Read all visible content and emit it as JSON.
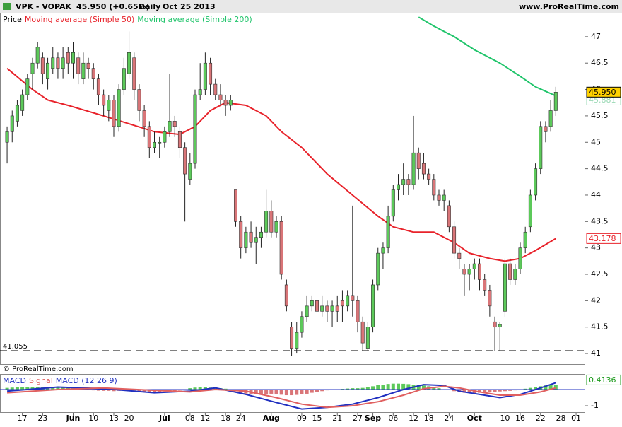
{
  "header": {
    "symbol": "VPK - VOPAK",
    "last": "45.950 (+0.65%)",
    "period": "Daily",
    "date": "Oct 25 2013",
    "site": "www.ProRealTime.com"
  },
  "footer": "© ProRealTime.com",
  "chart_data": [
    {
      "type": "candlestick",
      "name": "Price",
      "up_color": "#5cc95a",
      "down_color": "#d97578",
      "open": [
        45.0,
        45.2,
        45.4,
        45.6,
        45.9,
        46.3,
        46.5,
        46.6,
        46.2,
        46.4,
        46.6,
        46.4,
        46.7,
        46.5,
        46.6,
        46.2,
        46.5,
        46.4,
        46.2,
        45.9,
        45.6,
        45.8,
        45.3,
        46.0,
        46.3,
        46.6,
        46.0,
        45.6,
        45.3,
        44.9,
        45.0,
        45.0,
        45.2,
        45.4,
        45.2,
        44.9,
        44.3,
        44.6,
        45.9,
        46.0,
        46.5,
        46.1,
        45.9,
        45.8,
        45.7,
        44.1,
        43.5,
        43.0,
        43.3,
        43.1,
        43.2,
        43.3,
        43.7,
        43.3,
        43.5,
        42.3,
        41.5,
        41.1,
        41.4,
        41.7,
        41.9,
        42.0,
        41.8,
        41.9,
        41.8,
        41.9,
        42.0,
        41.9,
        42.1,
        42.0,
        41.6,
        41.1,
        41.5,
        42.3,
        42.9,
        43.0,
        43.6,
        44.1,
        44.2,
        44.3,
        44.2,
        44.8,
        44.6,
        44.4,
        44.3,
        44.0,
        43.9,
        43.8,
        43.4,
        42.9,
        42.6,
        42.5,
        42.6,
        42.7,
        42.4,
        42.2,
        41.6,
        41.5,
        41.8,
        42.7,
        42.4,
        42.6,
        43.0,
        43.4,
        44.0,
        44.5,
        45.3,
        45.3,
        45.6
      ],
      "high": [
        45.3,
        45.6,
        45.8,
        46.0,
        46.3,
        46.6,
        46.9,
        46.7,
        46.6,
        46.8,
        46.7,
        46.8,
        46.8,
        46.9,
        46.7,
        46.7,
        46.6,
        46.5,
        46.3,
        46.0,
        45.9,
        45.9,
        46.1,
        46.6,
        47.1,
        46.7,
        46.1,
        45.7,
        45.4,
        45.2,
        45.1,
        45.3,
        46.3,
        45.5,
        45.3,
        45.0,
        44.8,
        46.0,
        46.5,
        46.7,
        46.6,
        46.2,
        46.1,
        45.9,
        45.9,
        44.1,
        43.6,
        43.4,
        43.5,
        43.4,
        43.4,
        44.1,
        43.9,
        43.6,
        43.6,
        42.4,
        41.6,
        41.6,
        41.8,
        42.1,
        42.1,
        42.1,
        42.1,
        42.0,
        42.0,
        42.1,
        42.2,
        42.2,
        43.8,
        42.1,
        41.7,
        41.6,
        42.4,
        43.0,
        43.1,
        43.8,
        44.2,
        44.4,
        44.6,
        44.4,
        45.5,
        44.9,
        44.8,
        44.5,
        44.4,
        44.1,
        44.1,
        43.9,
        43.5,
        43.0,
        42.7,
        42.7,
        42.8,
        42.8,
        42.5,
        42.3,
        41.7,
        41.6,
        42.8,
        42.8,
        42.7,
        43.1,
        43.4,
        44.1,
        44.6,
        45.4,
        45.4,
        45.8,
        46.05
      ],
      "low": [
        44.6,
        45.0,
        45.3,
        45.5,
        45.8,
        46.0,
        46.4,
        46.1,
        46.0,
        46.3,
        46.2,
        46.2,
        46.3,
        46.2,
        46.1,
        46.1,
        46.2,
        46.0,
        45.7,
        45.5,
        45.4,
        45.1,
        45.2,
        45.9,
        46.2,
        45.8,
        45.4,
        45.1,
        44.7,
        44.8,
        44.7,
        44.9,
        45.1,
        45.1,
        44.7,
        43.5,
        44.2,
        44.5,
        45.8,
        45.9,
        45.9,
        45.8,
        45.7,
        45.5,
        45.6,
        43.4,
        42.8,
        42.9,
        43.0,
        42.7,
        43.0,
        43.2,
        43.2,
        43.2,
        42.4,
        41.8,
        40.95,
        41.0,
        41.3,
        41.6,
        41.8,
        41.6,
        41.7,
        41.6,
        41.5,
        41.6,
        41.6,
        41.8,
        41.7,
        41.4,
        41.05,
        41.05,
        41.4,
        42.2,
        42.6,
        42.9,
        43.5,
        43.9,
        44.0,
        44.0,
        44.1,
        44.3,
        44.3,
        44.2,
        43.9,
        43.8,
        43.7,
        43.3,
        42.8,
        42.6,
        42.1,
        42.2,
        42.4,
        42.2,
        42.1,
        41.7,
        41.05,
        41.05,
        41.7,
        42.3,
        42.3,
        42.5,
        42.9,
        43.3,
        43.9,
        44.4,
        45.0,
        45.2,
        45.5
      ],
      "close": [
        45.2,
        45.5,
        45.7,
        45.9,
        46.2,
        46.5,
        46.8,
        46.3,
        46.5,
        46.6,
        46.4,
        46.6,
        46.5,
        46.7,
        46.3,
        46.5,
        46.4,
        46.2,
        45.9,
        45.7,
        45.8,
        45.3,
        46.0,
        46.4,
        46.7,
        46.0,
        45.6,
        45.3,
        44.9,
        45.0,
        45.0,
        45.2,
        45.4,
        45.3,
        44.9,
        44.4,
        44.6,
        45.9,
        46.0,
        46.5,
        46.1,
        45.9,
        45.8,
        45.7,
        45.8,
        43.5,
        43.0,
        43.3,
        43.1,
        43.2,
        43.3,
        43.7,
        43.3,
        43.5,
        42.5,
        41.9,
        41.1,
        41.4,
        41.7,
        41.9,
        42.0,
        41.8,
        41.9,
        41.8,
        41.9,
        41.8,
        41.9,
        42.1,
        42.0,
        41.6,
        41.2,
        41.5,
        42.3,
        42.9,
        43.0,
        43.6,
        44.1,
        44.2,
        44.3,
        44.2,
        44.8,
        44.5,
        44.4,
        44.3,
        44.0,
        43.9,
        44.0,
        43.4,
        42.9,
        42.8,
        42.5,
        42.6,
        42.7,
        42.4,
        42.2,
        41.9,
        41.5,
        41.55,
        42.7,
        42.4,
        42.6,
        43.0,
        43.3,
        44.0,
        44.5,
        45.3,
        45.2,
        45.6,
        45.95
      ],
      "close_label": "45.950",
      "support": 41.055,
      "xlim": [
        -1.4,
        113.8
      ],
      "ylim": [
        40.8,
        47.44
      ],
      "yticks": [
        41,
        41.5,
        42,
        42.5,
        43,
        43.5,
        44,
        44.5,
        45,
        45.5,
        46,
        46.5,
        47
      ],
      "xticks": [
        {
          "value": 3,
          "label": "17"
        },
        {
          "value": 7,
          "label": "23"
        },
        {
          "value": 13,
          "label": "Jun"
        },
        {
          "value": 17,
          "label": "10"
        },
        {
          "value": 21,
          "label": "13"
        },
        {
          "value": 24,
          "label": "20"
        },
        {
          "value": 31,
          "label": "Jul"
        },
        {
          "value": 36,
          "label": "08"
        },
        {
          "value": 39,
          "label": "12"
        },
        {
          "value": 43,
          "label": "18"
        },
        {
          "value": 46,
          "label": "24"
        },
        {
          "value": 52,
          "label": "Aug"
        },
        {
          "value": 58,
          "label": "09"
        },
        {
          "value": 61,
          "label": "15"
        },
        {
          "value": 65,
          "label": "21"
        },
        {
          "value": 69,
          "label": "27"
        },
        {
          "value": 72,
          "label": "Sep"
        },
        {
          "value": 76,
          "label": "06"
        },
        {
          "value": 80,
          "label": "12"
        },
        {
          "value": 83,
          "label": "18"
        },
        {
          "value": 87,
          "label": "24"
        },
        {
          "value": 92,
          "label": "Oct"
        },
        {
          "value": 98,
          "label": "10"
        },
        {
          "value": 101,
          "label": "16"
        },
        {
          "value": 105,
          "label": "22"
        },
        {
          "value": 109,
          "label": "28"
        },
        {
          "value": 112,
          "label": "01"
        }
      ],
      "series": [
        {
          "name": "Moving average (Simple 50)",
          "color": "#e8232b",
          "x": [
            0,
            5,
            8,
            12,
            19,
            24,
            29,
            34,
            37,
            40,
            43,
            47,
            51,
            54,
            58,
            63,
            68,
            73,
            76,
            80,
            84,
            88,
            91,
            95,
            98,
            101,
            104,
            108
          ],
          "values": [
            46.4,
            46.0,
            45.8,
            45.7,
            45.5,
            45.35,
            45.2,
            45.15,
            45.3,
            45.6,
            45.75,
            45.7,
            45.5,
            45.2,
            44.9,
            44.4,
            44.0,
            43.6,
            43.4,
            43.3,
            43.3,
            43.1,
            42.9,
            42.8,
            42.75,
            42.8,
            42.95,
            43.178
          ]
        },
        {
          "name": "Moving average (Simple 200)",
          "color": "#1fc46a",
          "x": [
            81,
            84,
            88,
            92,
            97,
            101,
            104,
            108
          ],
          "values": [
            47.37,
            47.2,
            47.0,
            46.75,
            46.5,
            46.25,
            46.05,
            45.881
          ]
        }
      ]
    },
    {
      "type": "macd",
      "title": "MACD (12 26 9)",
      "xlim": [
        -1.4,
        113.8
      ],
      "ylim": [
        -1.39,
        0.91
      ],
      "yticks": [
        -1
      ],
      "pos_color": "#5cc95a",
      "neg_color": "#d97578",
      "histogram": [
        0.1,
        0.12,
        0.14,
        0.15,
        0.16,
        0.17,
        0.17,
        0.16,
        0.15,
        0.15,
        0.14,
        0.12,
        0.1,
        0.08,
        0.05,
        0.02,
        -0.02,
        -0.05,
        -0.07,
        -0.08,
        -0.08,
        -0.1,
        -0.08,
        -0.05,
        -0.04,
        -0.06,
        -0.1,
        -0.13,
        -0.15,
        -0.15,
        -0.14,
        -0.12,
        -0.1,
        -0.08,
        -0.06,
        0.02,
        0.08,
        0.12,
        0.15,
        0.14,
        0.12,
        0.1,
        0.08,
        0.05,
        0.02,
        -0.1,
        -0.2,
        -0.25,
        -0.28,
        -0.3,
        -0.3,
        -0.28,
        -0.26,
        -0.28,
        -0.32,
        -0.35,
        -0.35,
        -0.33,
        -0.3,
        -0.26,
        -0.2,
        -0.15,
        -0.1,
        -0.05,
        0.0,
        0.02,
        0.04,
        0.06,
        0.08,
        0.08,
        0.1,
        0.14,
        0.2,
        0.26,
        0.3,
        0.34,
        0.36,
        0.36,
        0.35,
        0.33,
        0.3,
        0.27,
        0.24,
        0.2,
        0.14,
        0.08,
        0.02,
        -0.04,
        -0.1,
        -0.15,
        -0.2,
        -0.22,
        -0.22,
        -0.2,
        -0.18,
        -0.16,
        -0.14,
        -0.12,
        -0.1,
        -0.08,
        -0.05,
        0.0,
        0.05,
        0.1,
        0.15,
        0.2,
        0.25,
        0.28,
        0.3
      ],
      "series": [
        {
          "name": "MACD",
          "color": "#2030c0",
          "x": [
            0,
            10,
            19,
            29,
            36,
            41,
            47,
            53,
            58,
            63,
            68,
            73,
            78,
            82,
            86,
            89,
            93,
            97,
            101,
            105,
            108
          ],
          "values": [
            -0.1,
            0.15,
            0.05,
            -0.2,
            -0.1,
            0.1,
            -0.3,
            -0.8,
            -1.2,
            -1.1,
            -0.9,
            -0.5,
            0.0,
            0.3,
            0.25,
            -0.1,
            -0.3,
            -0.5,
            -0.3,
            0.1,
            0.4136
          ]
        },
        {
          "name": "Signal",
          "color": "#e06060",
          "x": [
            0,
            10,
            19,
            29,
            36,
            41,
            47,
            53,
            58,
            63,
            68,
            73,
            78,
            82,
            86,
            89,
            93,
            97,
            101,
            105,
            108
          ],
          "values": [
            -0.2,
            0.0,
            0.1,
            -0.05,
            -0.15,
            0.0,
            -0.1,
            -0.5,
            -0.9,
            -1.1,
            -1.0,
            -0.75,
            -0.35,
            0.05,
            0.2,
            0.1,
            -0.15,
            -0.35,
            -0.35,
            -0.15,
            0.1
          ]
        }
      ]
    }
  ]
}
